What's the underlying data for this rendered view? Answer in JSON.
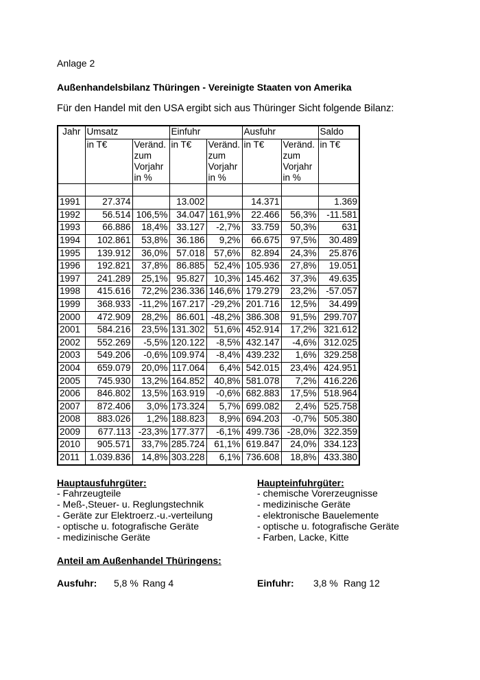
{
  "header": {
    "annex": "Anlage 2",
    "title": "Außenhandelsbilanz Thüringen - Vereinigte Staaten von Amerika",
    "intro": "Für den Handel mit den USA ergibt sich aus Thüringer Sicht folgende Bilanz:"
  },
  "table": {
    "groups": [
      "Jahr",
      "Umsatz",
      "Einfuhr",
      "Ausfuhr",
      "Saldo"
    ],
    "subheaders": [
      "in T€",
      "Veränd. zum Vorjahr in %",
      "in T€",
      "Veränd. zum Vorjahr in %",
      "in T€",
      "Veränd. zum Vorjahr in %",
      "in T€"
    ],
    "rows": [
      [
        "1991",
        "27.374",
        null,
        "13.002",
        null,
        "14.371",
        null,
        "1.369"
      ],
      [
        "1992",
        "56.514",
        "106,5%",
        "34.047",
        "161,9%",
        "22.466",
        "56,3%",
        "-11.581"
      ],
      [
        "1993",
        "66.886",
        "18,4%",
        "33.127",
        "-2,7%",
        "33.759",
        "50,3%",
        "631"
      ],
      [
        "1994",
        "102.861",
        "53,8%",
        "36.186",
        "9,2%",
        "66.675",
        "97,5%",
        "30.489"
      ],
      [
        "1995",
        "139.912",
        "36,0%",
        "57.018",
        "57,6%",
        "82.894",
        "24,3%",
        "25.876"
      ],
      [
        "1996",
        "192.821",
        "37,8%",
        "86.885",
        "52,4%",
        "105.936",
        "27,8%",
        "19.051"
      ],
      [
        "1997",
        "241.289",
        "25,1%",
        "95.827",
        "10,3%",
        "145.462",
        "37,3%",
        "49.635"
      ],
      [
        "1998",
        "415.616",
        "72,2%",
        "236.336",
        "146,6%",
        "179.279",
        "23,2%",
        "-57.057"
      ],
      [
        "1999",
        "368.933",
        "-11,2%",
        "167.217",
        "-29,2%",
        "201.716",
        "12,5%",
        "34.499"
      ],
      [
        "2000",
        "472.909",
        "28,2%",
        "86.601",
        "-48,2%",
        "386.308",
        "91,5%",
        "299.707"
      ],
      [
        "2001",
        "584.216",
        "23,5%",
        "131.302",
        "51,6%",
        "452.914",
        "17,2%",
        "321.612"
      ],
      [
        "2002",
        "552.269",
        "-5,5%",
        "120.122",
        "-8,5%",
        "432.147",
        "-4,6%",
        "312.025"
      ],
      [
        "2003",
        "549.206",
        "-0,6%",
        "109.974",
        "-8,4%",
        "439.232",
        "1,6%",
        "329.258"
      ],
      [
        "2004",
        "659.079",
        "20,0%",
        "117.064",
        "6,4%",
        "542.015",
        "23,4%",
        "424.951"
      ],
      [
        "2005",
        "745.930",
        "13,2%",
        "164.852",
        "40,8%",
        "581.078",
        "7,2%",
        "416.226"
      ],
      [
        "2006",
        "846.802",
        "13,5%",
        "163.919",
        "-0,6%",
        "682.883",
        "17,5%",
        "518.964"
      ],
      [
        "2007",
        "872.406",
        "3,0%",
        "173.324",
        "5,7%",
        "699.082",
        "2,4%",
        "525.758"
      ],
      [
        "2008",
        "883.026",
        "1,2%",
        "188.823",
        "8,9%",
        "694.203",
        "-0,7%",
        "505.380"
      ],
      [
        "2009",
        "677.113",
        "-23,3%",
        "177.377",
        "-6,1%",
        "499.736",
        "-28,0%",
        "322.359"
      ],
      [
        "2010",
        "905.571",
        "33,7%",
        "285.724",
        "61,1%",
        "619.847",
        "24,0%",
        "334.123"
      ],
      [
        "2011",
        "1.039.836",
        "14,8%",
        "303.228",
        "6,1%",
        "736.608",
        "18,8%",
        "433.380"
      ]
    ]
  },
  "exports": {
    "title": "Hauptausfuhrgüter:",
    "items": [
      "- Fahrzeugteile",
      "- Meß-,Steuer- u. Reglungstechnik",
      "- Geräte zur Elektroerz.-u.-verteilung",
      "- optische u. fotografische Geräte",
      "- medizinische Geräte"
    ]
  },
  "imports": {
    "title": "Haupteinfuhrgüter:",
    "items": [
      "- chemische Vorerzeugnisse",
      "- medizinische Geräte",
      "- elektronische Bauelemente",
      "- optische u. fotografische Geräte",
      "- Farben, Lacke, Kitte"
    ]
  },
  "share": {
    "title": "Anteil am Außenhandel Thüringens:",
    "export": {
      "label": "Ausfuhr:",
      "share": "5,8 %",
      "rank": "Rang 4"
    },
    "import": {
      "label": "Einfuhr:",
      "share": "3,8 %",
      "rank": "Rang 12"
    }
  }
}
